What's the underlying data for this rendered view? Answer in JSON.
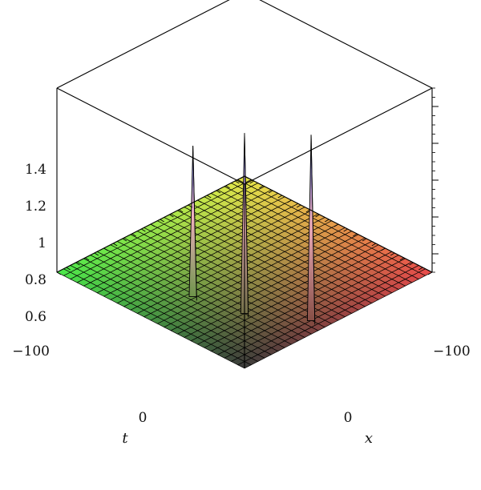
{
  "chart_data": {
    "type": "surface3d",
    "title": "",
    "axes": {
      "x": {
        "label": "x",
        "range": [
          -100,
          100
        ],
        "tick_labels": [
          "−100",
          "0"
        ],
        "tick_values": [
          -100,
          0
        ]
      },
      "t": {
        "label": "t",
        "range": [
          -100,
          100
        ],
        "tick_labels": [
          "−100",
          "0"
        ],
        "tick_values": [
          -100,
          0
        ]
      },
      "z": {
        "label": "",
        "range": [
          0.5,
          1.5
        ],
        "tick_labels": [
          "0.6",
          "0.8",
          "1",
          "1.2",
          "1.4"
        ],
        "tick_values": [
          0.6,
          0.8,
          1.0,
          1.2,
          1.4
        ]
      }
    },
    "baseline": 0.5,
    "grid_lines": 28,
    "peaks": [
      {
        "x": 0,
        "t": -55,
        "height": 1.33
      },
      {
        "x": -45,
        "t": -45,
        "height": 1.49
      },
      {
        "x": -88,
        "t": -17,
        "height": 1.52
      }
    ],
    "colors": {
      "near_left_corner": "#e84a4a",
      "near_right_corner": "#4ae84a",
      "bottom_corner": "#e8e84a",
      "back_corner": "#3a3a3a",
      "peak_top": "#4a6ae8",
      "peak_pink": "#f0b0c0",
      "mesh": "#000000"
    },
    "grid": true
  }
}
